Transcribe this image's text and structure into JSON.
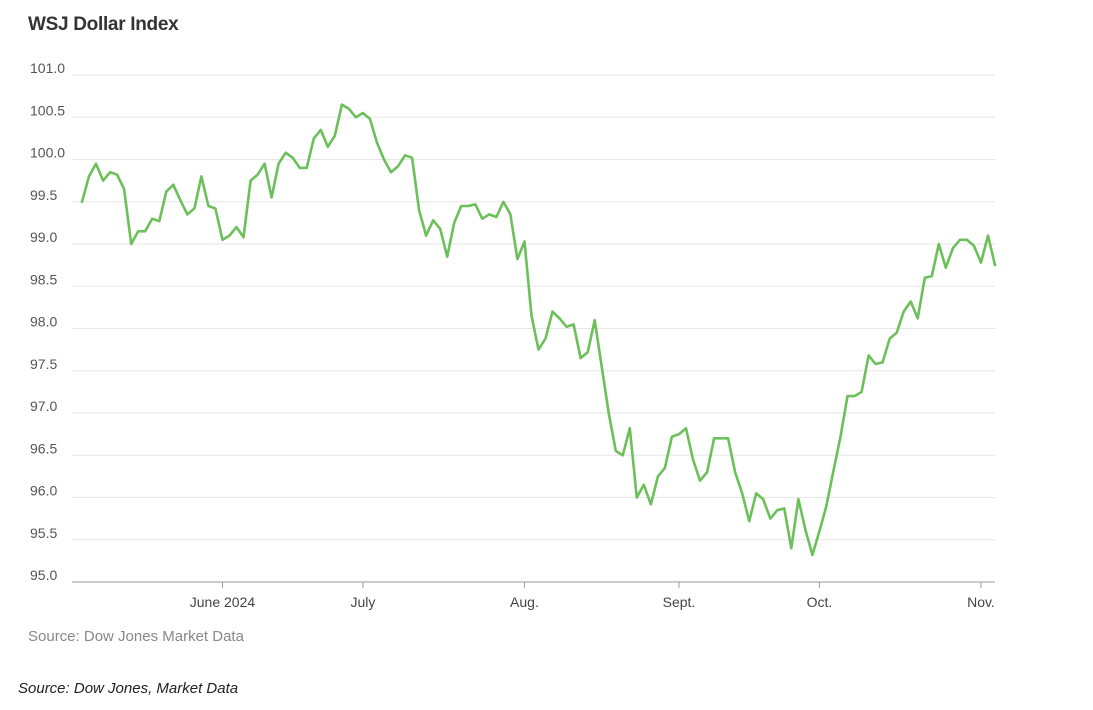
{
  "title": "WSJ Dollar Index",
  "source_line": "Source: Dow Jones Market Data",
  "caption": "Source: Dow Jones, Market Data",
  "colors": {
    "line": "#6cc05a",
    "grid": "#e6e6e6",
    "axis": "#999999"
  },
  "chart_data": {
    "type": "line",
    "title": "WSJ Dollar Index",
    "ylim": [
      95.0,
      101.0
    ],
    "yticks": [
      "101.0",
      "100.5",
      "100.0",
      "99.5",
      "99.0",
      "98.5",
      "98.0",
      "97.5",
      "97.0",
      "96.5",
      "96.0",
      "95.5",
      "95.0"
    ],
    "xticks": [
      {
        "label": "June 2024",
        "index": 20
      },
      {
        "label": "July",
        "index": 40
      },
      {
        "label": "Aug.",
        "index": 63
      },
      {
        "label": "Sept.",
        "index": 85
      },
      {
        "label": "Oct.",
        "index": 105
      },
      {
        "label": "Nov.",
        "index": 128
      }
    ],
    "grid": true,
    "series": [
      {
        "values": [
          99.5,
          99.8,
          99.95,
          99.75,
          99.85,
          99.82,
          99.65,
          99.0,
          99.15,
          99.15,
          99.3,
          99.27,
          99.62,
          99.7,
          99.52,
          99.35,
          99.42,
          99.8,
          99.45,
          99.42,
          99.05,
          99.1,
          99.2,
          99.08,
          99.75,
          99.82,
          99.95,
          99.55,
          99.95,
          100.08,
          100.02,
          99.9,
          99.9,
          100.25,
          100.35,
          100.15,
          100.28,
          100.65,
          100.6,
          100.5,
          100.55,
          100.48,
          100.2,
          100.0,
          99.85,
          99.92,
          100.05,
          100.02,
          99.4,
          99.1,
          99.28,
          99.18,
          98.85,
          99.25,
          99.45,
          99.45,
          99.47,
          99.3,
          99.35,
          99.32,
          99.5,
          99.35,
          98.82,
          99.03,
          98.15,
          97.75,
          97.88,
          98.2,
          98.12,
          98.02,
          98.05,
          97.65,
          97.72,
          98.1,
          97.55,
          97.0,
          96.55,
          96.5,
          96.82,
          96.0,
          96.15,
          95.92,
          96.25,
          96.35,
          96.72,
          96.75,
          96.82,
          96.45,
          96.2,
          96.3,
          96.7,
          96.7,
          96.7,
          96.3,
          96.05,
          95.72,
          96.05,
          95.98,
          95.75,
          95.85,
          95.87,
          95.4,
          95.98,
          95.62,
          95.32,
          95.6,
          95.9,
          96.32,
          96.72,
          97.2,
          97.2,
          97.25,
          97.68,
          97.58,
          97.6,
          97.88,
          97.95,
          98.2,
          98.32,
          98.12,
          98.6,
          98.62,
          99.0,
          98.72,
          98.95,
          99.05,
          99.05,
          98.98,
          98.78,
          99.1,
          98.75
        ]
      }
    ]
  }
}
